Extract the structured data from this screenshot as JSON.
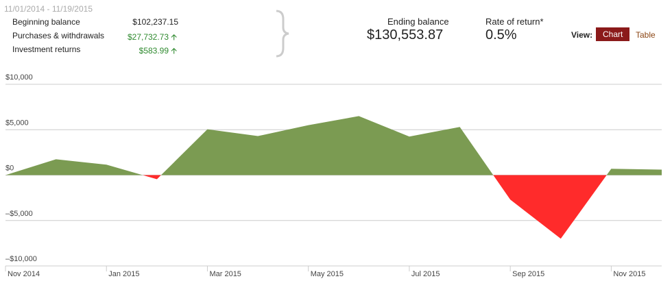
{
  "summary": {
    "date_range": "11/01/2014 - 11/19/2015",
    "rows": [
      {
        "label": "Beginning balance",
        "value": "$102,237.15"
      },
      {
        "label": "Purchases & withdrawals",
        "value": "$27,732.73"
      },
      {
        "label": "Investment returns",
        "value": "$583.99"
      }
    ],
    "ending_label": "Ending balance",
    "ending_value": "$130,553.87",
    "rate_label": "Rate of return*",
    "rate_value": "0.5%",
    "view_label": "View:",
    "view_chart": "Chart",
    "view_table": "Table"
  },
  "chart_data": {
    "type": "area",
    "categories": [
      "Nov 2014",
      null,
      "Jan 2015",
      null,
      "Mar 2015",
      null,
      "May 2015",
      null,
      "Jul 2015",
      null,
      "Sep 2015",
      null,
      "Nov 2015",
      null
    ],
    "values": [
      0,
      1750,
      1150,
      -450,
      5050,
      4300,
      5500,
      6500,
      4250,
      5300,
      -2700,
      -7000,
      700,
      600
    ],
    "color": "#7b9b52",
    "negative_color": "#ff2b2b",
    "ylim": [
      -10000,
      10000
    ],
    "yticks": [
      {
        "value": 10000,
        "label": "$10,000"
      },
      {
        "value": 5000,
        "label": "$5,000"
      },
      {
        "value": 0,
        "label": "$0"
      },
      {
        "value": -5000,
        "label": "–$5,000"
      },
      {
        "value": -10000,
        "label": "–$10,000"
      }
    ],
    "grid": true
  }
}
